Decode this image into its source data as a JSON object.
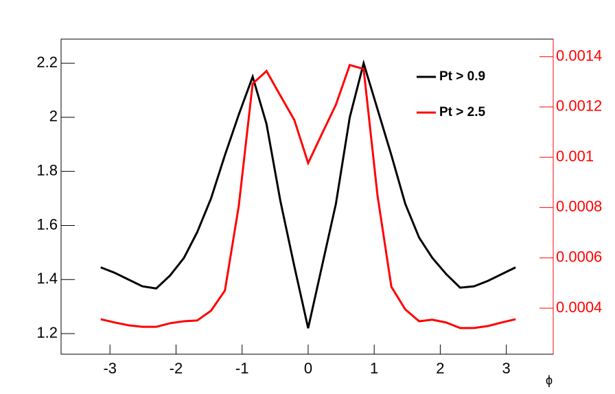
{
  "chart_data": {
    "type": "line",
    "x": [
      -3.14,
      -2.93,
      -2.72,
      -2.51,
      -2.3,
      -2.09,
      -1.88,
      -1.68,
      -1.47,
      -1.26,
      -1.05,
      -0.84,
      -0.63,
      -0.42,
      -0.21,
      0,
      0.21,
      0.42,
      0.63,
      0.84,
      1.05,
      1.26,
      1.47,
      1.68,
      1.88,
      2.09,
      2.3,
      2.51,
      2.72,
      2.93,
      3.14
    ],
    "x_label": "ϕ",
    "series": [
      {
        "name": "Pt > 0.9",
        "color": "#000000",
        "values": [
          1.445,
          1.425,
          1.4,
          1.375,
          1.367,
          1.415,
          1.48,
          1.575,
          1.7,
          1.86,
          2.01,
          2.15,
          1.975,
          1.69,
          1.45,
          1.22,
          1.45,
          1.68,
          2.0,
          2.2,
          2.03,
          1.86,
          1.68,
          1.555,
          1.48,
          1.42,
          1.37,
          1.375,
          1.395,
          1.42,
          1.445
        ]
      },
      {
        "name": "Pt > 2.5",
        "color": "#ff0000",
        "axis": "y2",
        "values": [
          0.000356,
          0.000343,
          0.000332,
          0.000326,
          0.000326,
          0.00034,
          0.000348,
          0.000351,
          0.00039,
          0.00047,
          0.000807,
          0.001293,
          0.001343,
          0.001245,
          0.001149,
          0.000977,
          0.001094,
          0.001209,
          0.001367,
          0.001351,
          0.000848,
          0.000485,
          0.000395,
          0.000348,
          0.000354,
          0.000343,
          0.000321,
          0.000321,
          0.000329,
          0.000343,
          0.000356
        ]
      }
    ],
    "xlim": [
      -3.74,
      3.71
    ],
    "xticks": [
      -3,
      -2,
      -1,
      0,
      1,
      2,
      3
    ],
    "ylim": [
      1.124,
      2.289
    ],
    "yticks": [
      1.2,
      1.4,
      1.6,
      1.8,
      2,
      2.2
    ],
    "y2lim": [
      0.000217,
      0.00147
    ],
    "y2ticks": [
      0.0004,
      0.0006,
      0.0008,
      0.001,
      0.0012,
      0.0014
    ],
    "y2_color": "#ff0000",
    "legend": "top-right"
  }
}
